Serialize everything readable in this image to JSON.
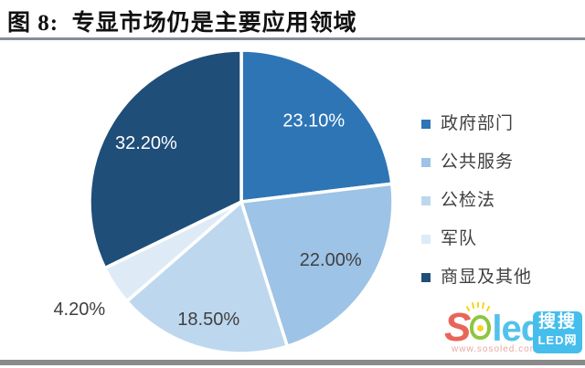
{
  "figure": {
    "title": "图 8:  专显市场仍是主要应用领域"
  },
  "chart_data": {
    "type": "pie",
    "title": "专显市场仍是主要应用领域",
    "start_angle_deg": 0,
    "direction": "clockwise",
    "legend_position": "right",
    "slices": [
      {
        "label": "政府部门",
        "value": 23.1,
        "pct_label": "23.10%",
        "color": "#2E75B6",
        "label_color": "#FFFFFF",
        "label_r": 0.72
      },
      {
        "label": "公共服务",
        "value": 22.0,
        "pct_label": "22.00%",
        "color": "#9DC3E6",
        "label_color": "#404040",
        "label_r": 0.7
      },
      {
        "label": "公检法",
        "value": 18.5,
        "pct_label": "18.50%",
        "color": "#BDD7EE",
        "label_color": "#404040",
        "label_r": 0.8
      },
      {
        "label": "军队",
        "value": 4.2,
        "pct_label": "4.20%",
        "color": "#DEEBF7",
        "label_color": "#404040",
        "label_r": 1.28
      },
      {
        "label": "商显及其他",
        "value": 32.2,
        "pct_label": "32.20%",
        "color": "#1F4E79",
        "label_color": "#FFFFFF",
        "label_r": 0.74
      }
    ]
  },
  "watermark": {
    "logo_s": "S",
    "logo_led": "led",
    "url": "www.sosoled.com",
    "badge_line1": "搜搜",
    "badge_line2": "LED网"
  },
  "colors": {
    "legend_text": "#404040",
    "title_rule": "#868D9A",
    "bottom_bar": "#8A8A8A",
    "slice_border": "#FFFFFF"
  }
}
